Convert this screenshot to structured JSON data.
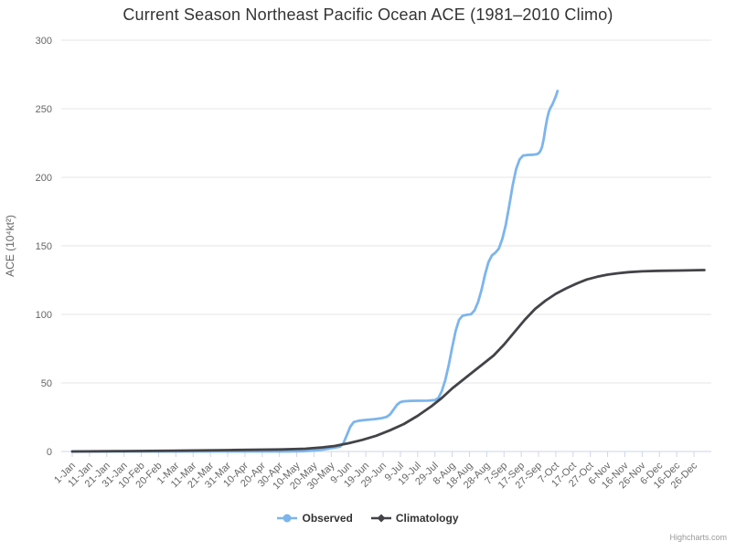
{
  "title": "Current Season Northeast Pacific Ocean ACE (1981–2010 Climo)",
  "credits_label": "Highcharts.com",
  "colors": {
    "background": "#ffffff",
    "grid": "#e6e6e6",
    "axis_line": "#ccd6eb",
    "tick_label": "#666666",
    "axis_title": "#666666",
    "title_text": "#333333",
    "legend_text": "#333333",
    "credits_text": "#999999",
    "observed": "#7cb5ec",
    "climatology": "#434348"
  },
  "chart_data": {
    "type": "line",
    "title": "Current Season Northeast Pacific Ocean ACE (1981–2010 Climo)",
    "xlabel": "",
    "ylabel": "ACE (10⁴kt²)",
    "ylim": [
      0,
      300
    ],
    "y_ticks": [
      0,
      50,
      100,
      150,
      200,
      250,
      300
    ],
    "grid": true,
    "legend_position": "bottom",
    "x_tick_interval_days": 10,
    "x_tick_labels": [
      "1-Jan",
      "11-Jan",
      "21-Jan",
      "31-Jan",
      "10-Feb",
      "20-Feb",
      "1-Mar",
      "11-Mar",
      "21-Mar",
      "31-Mar",
      "10-Apr",
      "20-Apr",
      "30-Apr",
      "10-May",
      "20-May",
      "30-May",
      "9-Jun",
      "19-Jun",
      "29-Jun",
      "9-Jul",
      "19-Jul",
      "29-Jul",
      "8-Aug",
      "18-Aug",
      "28-Aug",
      "7-Sep",
      "17-Sep",
      "27-Sep",
      "7-Oct",
      "17-Oct",
      "27-Oct",
      "6-Nov",
      "16-Nov",
      "26-Nov",
      "6-Dec",
      "16-Dec",
      "26-Dec"
    ],
    "series": [
      {
        "name": "Observed",
        "color": "#7cb5ec",
        "marker": "circle",
        "points_format": "[day_of_year, ACE]",
        "points": [
          [
            0,
            0
          ],
          [
            40,
            0
          ],
          [
            80,
            0
          ],
          [
            110,
            0
          ],
          [
            125,
            0
          ],
          [
            133,
            0.2
          ],
          [
            139,
            0.6
          ],
          [
            144,
            1.2
          ],
          [
            148,
            2
          ],
          [
            152,
            2.8
          ],
          [
            155,
            3.5
          ],
          [
            157,
            6
          ],
          [
            159,
            12
          ],
          [
            161,
            18
          ],
          [
            163,
            21.5
          ],
          [
            166,
            22.5
          ],
          [
            170,
            23
          ],
          [
            175,
            23.6
          ],
          [
            179,
            24.3
          ],
          [
            182,
            25.2
          ],
          [
            184,
            27
          ],
          [
            186,
            30.5
          ],
          [
            188,
            34
          ],
          [
            190,
            36
          ],
          [
            192,
            36.6
          ],
          [
            196,
            36.9
          ],
          [
            201,
            37
          ],
          [
            206,
            37.1
          ],
          [
            210,
            37.5
          ],
          [
            212,
            39
          ],
          [
            214,
            44
          ],
          [
            216,
            52
          ],
          [
            218,
            63
          ],
          [
            220,
            76
          ],
          [
            222,
            88
          ],
          [
            224,
            96
          ],
          [
            226,
            99
          ],
          [
            228,
            99.6
          ],
          [
            231,
            100.2
          ],
          [
            233,
            103
          ],
          [
            235,
            109
          ],
          [
            237,
            118
          ],
          [
            239,
            129
          ],
          [
            241,
            138
          ],
          [
            243,
            143
          ],
          [
            245,
            145
          ],
          [
            247,
            148
          ],
          [
            249,
            155
          ],
          [
            251,
            165
          ],
          [
            253,
            179
          ],
          [
            255,
            194
          ],
          [
            257,
            206
          ],
          [
            259,
            213
          ],
          [
            261,
            215.8
          ],
          [
            264,
            216.3
          ],
          [
            267,
            216.5
          ],
          [
            269,
            216.8
          ],
          [
            270,
            217.5
          ],
          [
            271,
            219
          ],
          [
            272,
            222
          ],
          [
            273,
            228
          ],
          [
            274,
            236
          ],
          [
            275,
            243
          ],
          [
            276,
            248
          ],
          [
            277,
            251
          ],
          [
            278,
            253
          ],
          [
            279,
            256
          ],
          [
            280,
            259
          ],
          [
            281,
            263
          ]
        ]
      },
      {
        "name": "Climatology",
        "color": "#434348",
        "marker": "diamond",
        "points_format": "[day_of_year, ACE]",
        "points": [
          [
            0,
            0
          ],
          [
            30,
            0.3
          ],
          [
            60,
            0.6
          ],
          [
            91,
            1
          ],
          [
            121,
            1.5
          ],
          [
            135,
            2
          ],
          [
            145,
            3
          ],
          [
            152,
            4
          ],
          [
            160,
            6
          ],
          [
            168,
            8.5
          ],
          [
            176,
            11.5
          ],
          [
            184,
            15.5
          ],
          [
            192,
            20
          ],
          [
            200,
            26
          ],
          [
            208,
            33
          ],
          [
            214,
            39
          ],
          [
            220,
            46
          ],
          [
            226,
            52
          ],
          [
            232,
            58
          ],
          [
            238,
            64
          ],
          [
            244,
            70
          ],
          [
            250,
            78
          ],
          [
            256,
            87
          ],
          [
            262,
            96
          ],
          [
            268,
            104
          ],
          [
            274,
            110
          ],
          [
            280,
            115
          ],
          [
            286,
            119
          ],
          [
            292,
            122.5
          ],
          [
            298,
            125.5
          ],
          [
            304,
            127.5
          ],
          [
            310,
            129
          ],
          [
            316,
            130
          ],
          [
            322,
            130.8
          ],
          [
            330,
            131.4
          ],
          [
            340,
            131.8
          ],
          [
            352,
            132
          ],
          [
            366,
            132.3
          ]
        ]
      }
    ]
  },
  "legend": {
    "items": [
      {
        "label": "Observed"
      },
      {
        "label": "Climatology"
      }
    ]
  }
}
